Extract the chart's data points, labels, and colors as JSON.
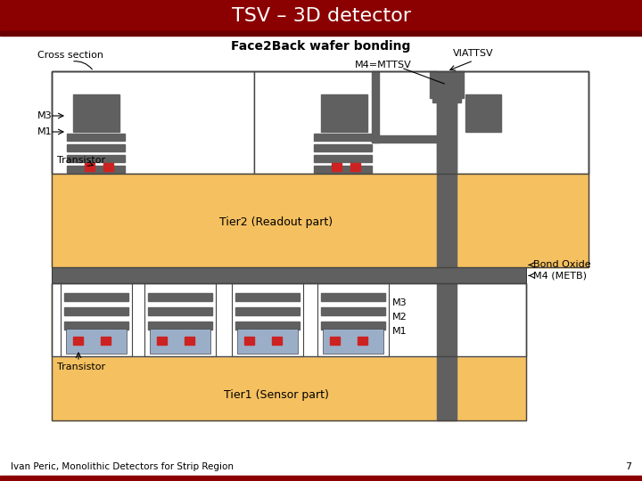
{
  "title": "TSV – 3D detector",
  "header_bg": "#8B0000",
  "footer_text": "Ivan Peric, Monolithic Detectors for Strip Region",
  "footer_num": "7",
  "cross_section_label": "Cross section",
  "face2back_label": "Face2Back wafer bonding",
  "viattsv_label": "VIATTSV",
  "m4mttsv_label": "M4=MTTSV",
  "tier2_label": "Tier2 (Readout part)",
  "bond_oxide_label": "Bond Oxide",
  "m4metb_label": "M4 (METB)",
  "m3_label": "M3",
  "m1_label": "M1",
  "transistor_label": "Transistor",
  "m3b_label": "M3",
  "m2b_label": "M2",
  "m1b_label": "M1",
  "transistor2_label": "Transistor",
  "tier1_label": "Tier1 (Sensor part)",
  "orange": "#F5C060",
  "dark_gray": "#606060",
  "mid_gray": "#808080",
  "white": "#FFFFFF",
  "red": "#CC2222",
  "blue": "#9BAEC8",
  "black": "#000000",
  "outline": "#444444",
  "bg": "#FFFFFF"
}
